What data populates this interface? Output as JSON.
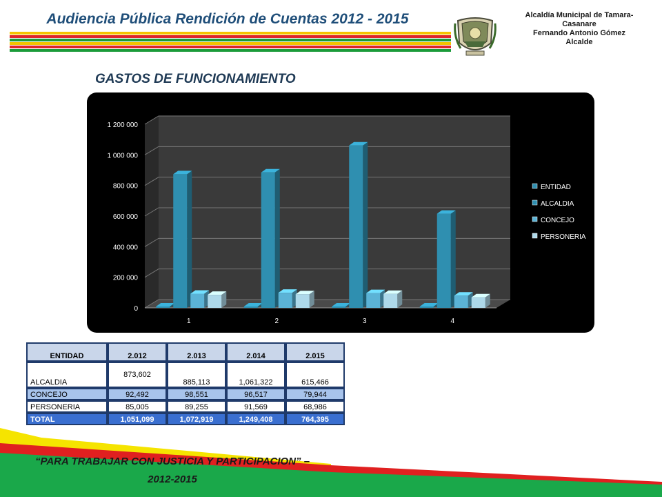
{
  "header": {
    "title": "Audiencia Pública Rendición de Cuentas 2012 - 2015",
    "stripe_colors": [
      "#f5c400",
      "#e0262a",
      "#1a9b3a",
      "#f5c400",
      "#e0262a",
      "#1a9b3a"
    ]
  },
  "office": {
    "line1": "Alcaldía Municipal de Tamara-",
    "line2": "Casanare",
    "line3": "Fernando Antonio Gómez",
    "line4": "Alcalde"
  },
  "section_title": "GASTOS DE FUNCIONAMIENTO",
  "chart_data": {
    "type": "bar",
    "categories": [
      "1",
      "2",
      "3",
      "4"
    ],
    "series": [
      {
        "name": "ENTIDAD",
        "values": [
          0,
          0,
          0,
          0
        ],
        "color": "#2f8fb0"
      },
      {
        "name": "ALCALDIA",
        "values": [
          873602,
          885113,
          1061322,
          615466
        ],
        "color": "#2f8fb0"
      },
      {
        "name": "CONCEJO",
        "values": [
          92492,
          98551,
          96517,
          79944
        ],
        "color": "#5bb3d6"
      },
      {
        "name": "PERSONERIA",
        "values": [
          85005,
          89255,
          91569,
          68986
        ],
        "color": "#aed9ea"
      }
    ],
    "yticks": [
      "0",
      "200 000",
      "400 000",
      "600 000",
      "800 000",
      "1 000 000",
      "1 200 000"
    ],
    "ylim": [
      0,
      1200000
    ],
    "legend_position": "right",
    "grid": true
  },
  "table": {
    "headers": [
      "ENTIDAD",
      "2.012",
      "2.013",
      "2.014",
      "2.015"
    ],
    "rows": [
      {
        "label": "ALCALDIA",
        "values": [
          "873,602",
          "885,113",
          "1,061,322",
          "615,466"
        ]
      },
      {
        "label": "CONCEJO",
        "values": [
          "92,492",
          "98,551",
          "96,517",
          "79,944"
        ]
      },
      {
        "label": "PERSONERIA",
        "values": [
          "85,005",
          "89,255",
          "91,569",
          "68,986"
        ]
      },
      {
        "label": "TOTAL",
        "values": [
          "1,051,099",
          "1,072,919",
          "1,249,408",
          "764,395"
        ]
      }
    ]
  },
  "footer": {
    "line1": "“PARA TRABAJAR CON JUSTICIA Y PARTICIPACION” –",
    "line2": "2012-2015",
    "colors": {
      "yellow": "#f5e400",
      "red": "#e02020",
      "green": "#1aa84a"
    }
  }
}
